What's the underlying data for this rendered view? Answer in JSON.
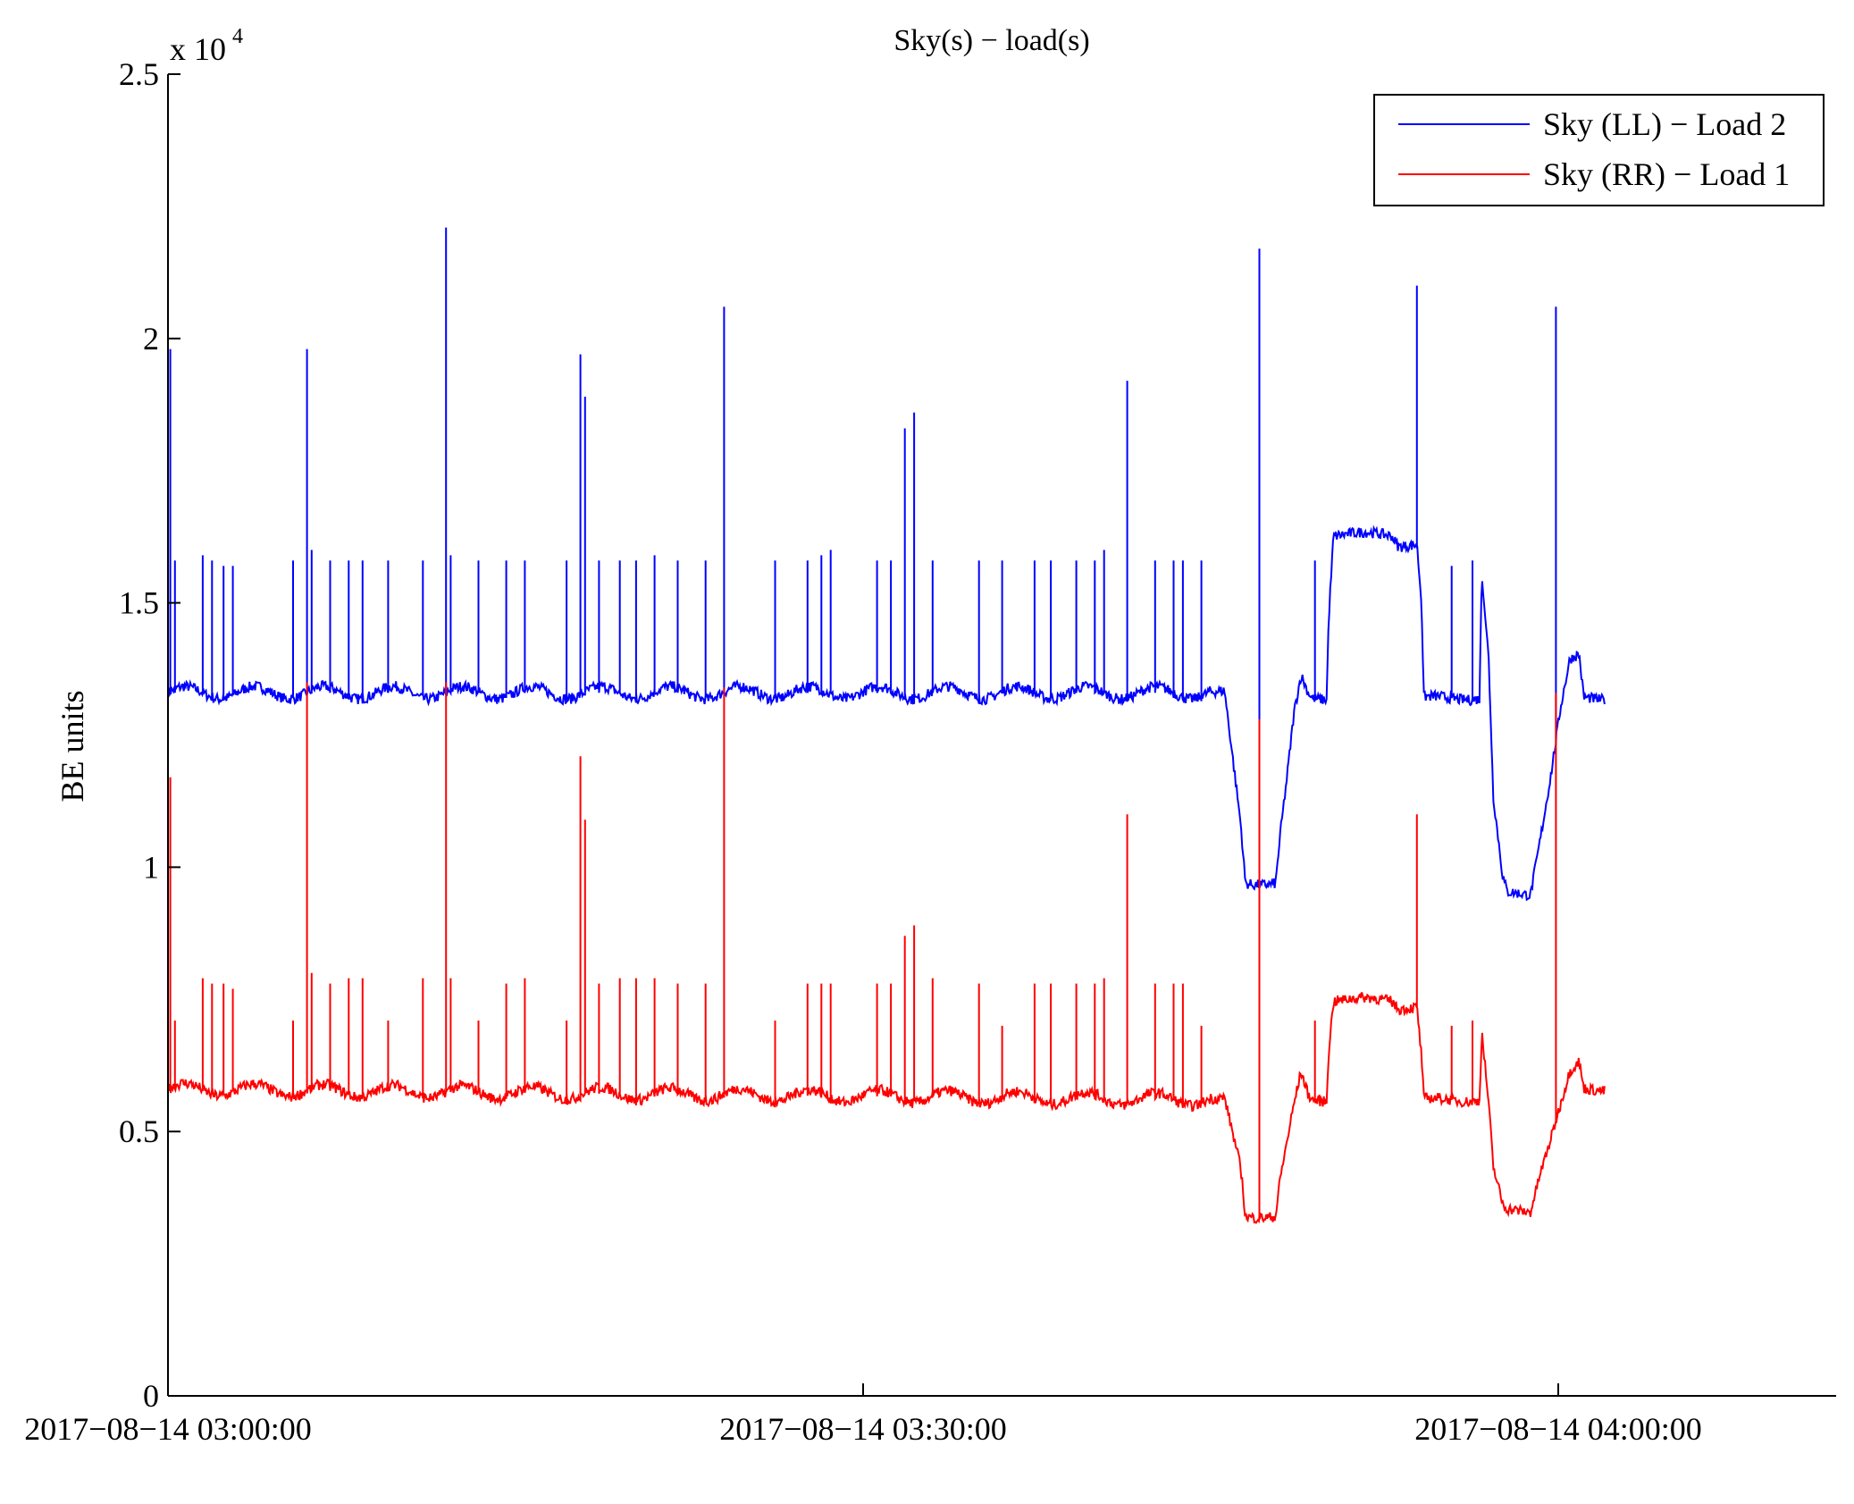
{
  "chart_data": {
    "type": "line",
    "title": "Sky(s) − load(s)",
    "xlabel": "",
    "ylabel": "BE units",
    "y_multiplier": "x 10",
    "y_multiplier_exponent": "4",
    "ylim": [
      0,
      2.5
    ],
    "y_ticks": [
      0,
      0.5,
      1,
      1.5,
      2,
      2.5
    ],
    "y_tick_labels": [
      "0",
      "0.5",
      "1",
      "1.5",
      "2",
      "2.5"
    ],
    "xlim_minutes": [
      0,
      72
    ],
    "x_ticks_minutes": [
      0,
      30,
      60
    ],
    "x_tick_labels": [
      "2017−08−14 03:00:00",
      "2017−08−14 03:30:00",
      "2017−08−14 04:00:00"
    ],
    "grid": false,
    "legend_position": "top-right",
    "series": [
      {
        "name": "Sky (LL) − Load 2",
        "color": "#0000ff",
        "baseline": [
          [
            0,
            1.33
          ],
          [
            45.6,
            1.33
          ],
          [
            46.3,
            1.08
          ],
          [
            46.5,
            0.97
          ],
          [
            47.8,
            0.97
          ],
          [
            48.0,
            1.06
          ],
          [
            48.3,
            1.17
          ],
          [
            48.6,
            1.29
          ],
          [
            48.9,
            1.36
          ],
          [
            49.2,
            1.33
          ],
          [
            49.4,
            1.32
          ],
          [
            50.0,
            1.32
          ],
          [
            50.1,
            1.48
          ],
          [
            50.3,
            1.63
          ],
          [
            52.8,
            1.63
          ],
          [
            53.1,
            1.61
          ],
          [
            53.9,
            1.61
          ],
          [
            54.1,
            1.5
          ],
          [
            54.2,
            1.32
          ],
          [
            56.6,
            1.32
          ],
          [
            56.7,
            1.56
          ],
          [
            57.0,
            1.39
          ],
          [
            57.2,
            1.13
          ],
          [
            57.6,
            0.98
          ],
          [
            57.8,
            0.95
          ],
          [
            58.8,
            0.95
          ],
          [
            59.2,
            1.05
          ],
          [
            59.7,
            1.18
          ],
          [
            60.1,
            1.3
          ],
          [
            60.5,
            1.39
          ],
          [
            60.9,
            1.4
          ],
          [
            61.1,
            1.32
          ],
          [
            62.0,
            1.32
          ]
        ],
        "spikes": [
          [
            0.1,
            1.98
          ],
          [
            0.3,
            1.58
          ],
          [
            1.5,
            1.59
          ],
          [
            1.9,
            1.58
          ],
          [
            2.4,
            1.57
          ],
          [
            2.8,
            1.57
          ],
          [
            5.4,
            1.58
          ],
          [
            6.0,
            1.98
          ],
          [
            6.2,
            1.6
          ],
          [
            7.0,
            1.58
          ],
          [
            7.8,
            1.58
          ],
          [
            8.4,
            1.58
          ],
          [
            9.5,
            1.58
          ],
          [
            11.0,
            1.58
          ],
          [
            12.0,
            2.21
          ],
          [
            12.2,
            1.59
          ],
          [
            13.4,
            1.58
          ],
          [
            14.6,
            1.58
          ],
          [
            15.4,
            1.58
          ],
          [
            17.2,
            1.58
          ],
          [
            17.8,
            1.97
          ],
          [
            18.0,
            1.89
          ],
          [
            18.6,
            1.58
          ],
          [
            19.5,
            1.58
          ],
          [
            20.2,
            1.58
          ],
          [
            21.0,
            1.59
          ],
          [
            22.0,
            1.58
          ],
          [
            23.2,
            1.58
          ],
          [
            24.0,
            2.06
          ],
          [
            26.2,
            1.58
          ],
          [
            27.6,
            1.58
          ],
          [
            28.2,
            1.59
          ],
          [
            28.6,
            1.6
          ],
          [
            30.6,
            1.58
          ],
          [
            31.2,
            1.58
          ],
          [
            31.8,
            1.83
          ],
          [
            32.2,
            1.86
          ],
          [
            33.0,
            1.58
          ],
          [
            35.0,
            1.58
          ],
          [
            36.0,
            1.58
          ],
          [
            37.4,
            1.58
          ],
          [
            38.1,
            1.58
          ],
          [
            39.2,
            1.58
          ],
          [
            40.0,
            1.58
          ],
          [
            40.4,
            1.6
          ],
          [
            41.4,
            1.92
          ],
          [
            42.6,
            1.58
          ],
          [
            43.4,
            1.58
          ],
          [
            43.8,
            1.58
          ],
          [
            44.6,
            1.58
          ],
          [
            47.1,
            2.17
          ],
          [
            49.5,
            1.58
          ],
          [
            53.9,
            2.1
          ],
          [
            55.4,
            1.57
          ],
          [
            56.3,
            1.58
          ],
          [
            59.9,
            2.06
          ]
        ]
      },
      {
        "name": "Sky (RR) − Load 1",
        "color": "#ff0000",
        "baseline": [
          [
            0,
            0.58
          ],
          [
            45.6,
            0.56
          ],
          [
            46.3,
            0.43
          ],
          [
            46.5,
            0.34
          ],
          [
            47.8,
            0.34
          ],
          [
            48.0,
            0.41
          ],
          [
            48.3,
            0.48
          ],
          [
            48.6,
            0.55
          ],
          [
            48.9,
            0.61
          ],
          [
            49.2,
            0.57
          ],
          [
            49.4,
            0.56
          ],
          [
            50.0,
            0.56
          ],
          [
            50.1,
            0.66
          ],
          [
            50.3,
            0.75
          ],
          [
            52.8,
            0.75
          ],
          [
            53.1,
            0.735
          ],
          [
            53.9,
            0.735
          ],
          [
            54.1,
            0.64
          ],
          [
            54.2,
            0.56
          ],
          [
            56.6,
            0.56
          ],
          [
            56.7,
            0.69
          ],
          [
            57.0,
            0.55
          ],
          [
            57.2,
            0.43
          ],
          [
            57.6,
            0.36
          ],
          [
            57.8,
            0.35
          ],
          [
            58.8,
            0.35
          ],
          [
            59.2,
            0.42
          ],
          [
            59.7,
            0.49
          ],
          [
            60.1,
            0.55
          ],
          [
            60.5,
            0.61
          ],
          [
            60.9,
            0.63
          ],
          [
            61.1,
            0.58
          ],
          [
            62.0,
            0.58
          ]
        ],
        "spikes": [
          [
            0.1,
            1.17
          ],
          [
            0.3,
            0.71
          ],
          [
            1.5,
            0.79
          ],
          [
            1.9,
            0.78
          ],
          [
            2.4,
            0.78
          ],
          [
            2.8,
            0.77
          ],
          [
            5.4,
            0.71
          ],
          [
            6.0,
            1.35
          ],
          [
            6.2,
            0.8
          ],
          [
            7.0,
            0.78
          ],
          [
            7.8,
            0.79
          ],
          [
            8.4,
            0.79
          ],
          [
            9.5,
            0.71
          ],
          [
            11.0,
            0.79
          ],
          [
            12.0,
            1.35
          ],
          [
            12.2,
            0.79
          ],
          [
            13.4,
            0.71
          ],
          [
            14.6,
            0.78
          ],
          [
            15.4,
            0.79
          ],
          [
            17.2,
            0.71
          ],
          [
            17.8,
            1.21
          ],
          [
            18.0,
            1.09
          ],
          [
            18.6,
            0.78
          ],
          [
            19.5,
            0.79
          ],
          [
            20.2,
            0.79
          ],
          [
            21.0,
            0.79
          ],
          [
            22.0,
            0.78
          ],
          [
            23.2,
            0.78
          ],
          [
            24.0,
            1.34
          ],
          [
            26.2,
            0.71
          ],
          [
            27.6,
            0.78
          ],
          [
            28.2,
            0.78
          ],
          [
            28.6,
            0.78
          ],
          [
            30.6,
            0.78
          ],
          [
            31.2,
            0.78
          ],
          [
            31.8,
            0.87
          ],
          [
            32.2,
            0.89
          ],
          [
            33.0,
            0.79
          ],
          [
            35.0,
            0.78
          ],
          [
            36.0,
            0.7
          ],
          [
            37.4,
            0.78
          ],
          [
            38.1,
            0.78
          ],
          [
            39.2,
            0.78
          ],
          [
            40.0,
            0.78
          ],
          [
            40.4,
            0.79
          ],
          [
            41.4,
            1.1
          ],
          [
            42.6,
            0.78
          ],
          [
            43.4,
            0.78
          ],
          [
            43.8,
            0.78
          ],
          [
            44.6,
            0.7
          ],
          [
            47.1,
            1.28
          ],
          [
            49.5,
            0.71
          ],
          [
            53.9,
            1.1
          ],
          [
            55.4,
            0.7
          ],
          [
            56.3,
            0.71
          ],
          [
            59.9,
            1.33
          ]
        ]
      }
    ]
  }
}
